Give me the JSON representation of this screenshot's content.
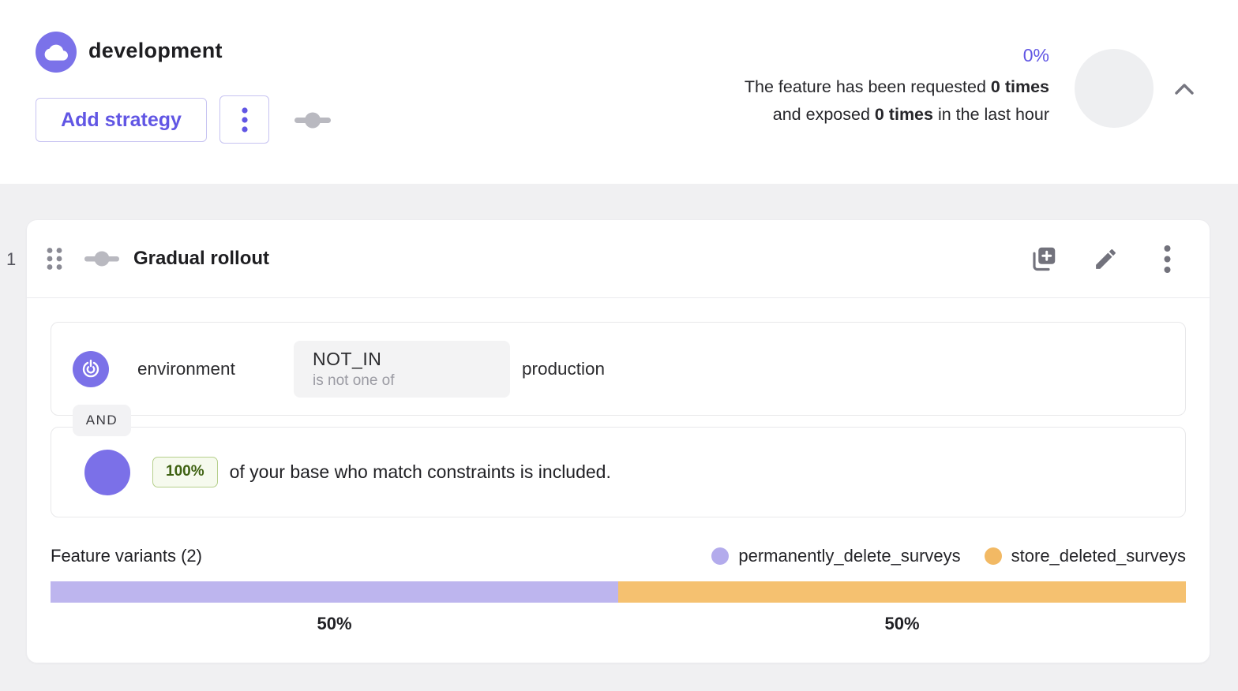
{
  "header": {
    "environment_name": "development",
    "add_strategy_label": "Add strategy",
    "metrics": {
      "percentage": "0%",
      "line1_prefix": "The feature has been requested ",
      "line1_bold": "0 times",
      "line2_prefix": "and exposed ",
      "line2_bold": "0 times",
      "line2_suffix": " in the last hour"
    }
  },
  "strategy": {
    "index": "1",
    "title": "Gradual rollout",
    "constraint": {
      "context_field": "environment",
      "operator": "NOT_IN",
      "operator_description": "is not one of",
      "value": "production"
    },
    "separator_label": "AND",
    "rollout": {
      "percentage_badge": "100%",
      "description": "of your base who match constraints is included."
    },
    "variants_title": "Feature variants (2)"
  },
  "chart_data": {
    "type": "bar",
    "title": "Feature variants (2)",
    "legend_position": "top-right",
    "segments": [
      {
        "name": "permanently_delete_surveys",
        "percent": 50,
        "color": "#bdb5ee",
        "dot_color": "#b3abec"
      },
      {
        "name": "store_deleted_surveys",
        "percent": 50,
        "color": "#f5c170",
        "dot_color": "#f2b964"
      }
    ]
  },
  "colors": {
    "accent_purple": "#6156e4",
    "badge_purple": "#7b72e9",
    "variant_purple": "#bdb5ee",
    "variant_orange": "#f5c170",
    "rollout_green_text": "#3f6212",
    "rollout_green_bg": "#f6faee",
    "page_background": "#f0f0f2"
  }
}
